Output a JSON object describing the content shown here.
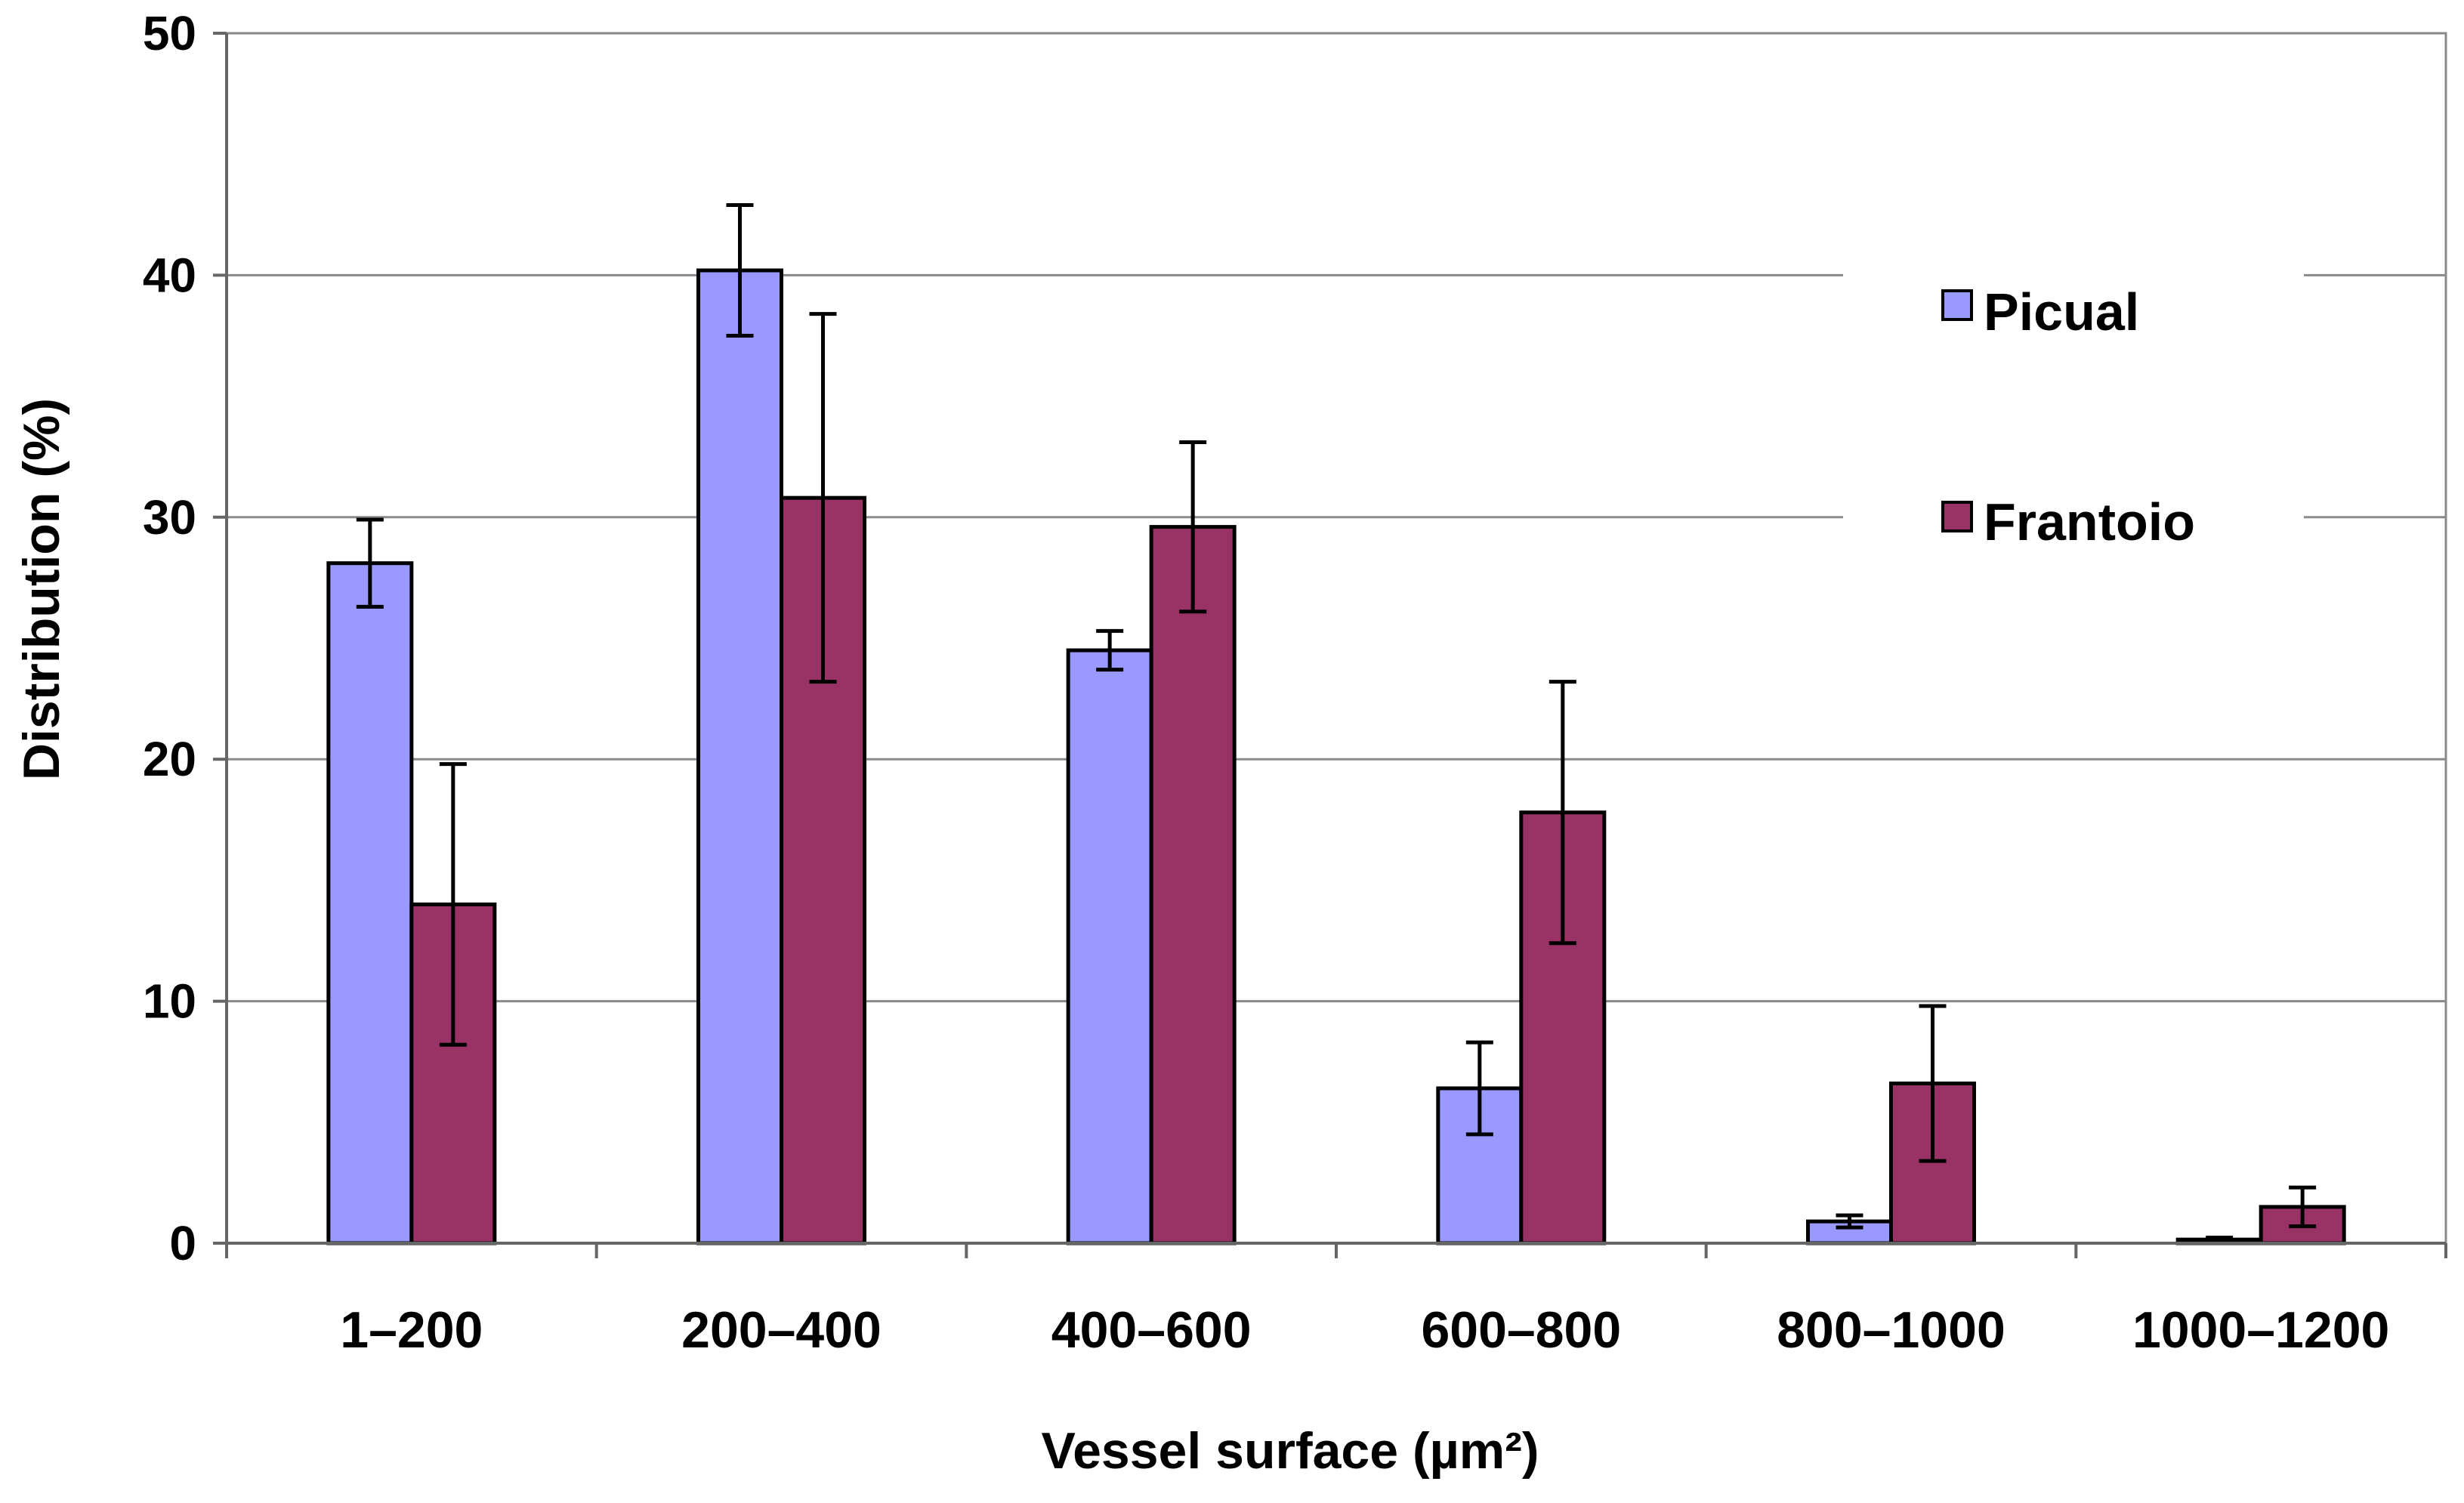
{
  "chart_data": {
    "type": "bar",
    "xlabel": "Vessel surface (µm²)",
    "ylabel": "Distribution (%)",
    "ylim": [
      0,
      50
    ],
    "yticks": [
      0,
      10,
      20,
      30,
      40,
      50
    ],
    "grid": true,
    "legend_position": "top-right",
    "categories": [
      "1–200",
      "200–400",
      "400–600",
      "600–800",
      "800–1000",
      "1000–1200"
    ],
    "series": [
      {
        "name": "Picual",
        "color": "#9999ff",
        "values": [
          28.1,
          40.2,
          24.5,
          6.4,
          0.9,
          0.15
        ],
        "errors": [
          1.8,
          2.7,
          0.8,
          1.9,
          0.25,
          0.08
        ]
      },
      {
        "name": "Frantoio",
        "color": "#993366",
        "values": [
          14.0,
          30.8,
          29.6,
          17.8,
          6.6,
          1.5
        ],
        "errors": [
          5.8,
          7.6,
          3.5,
          5.4,
          3.2,
          0.8
        ]
      }
    ]
  }
}
